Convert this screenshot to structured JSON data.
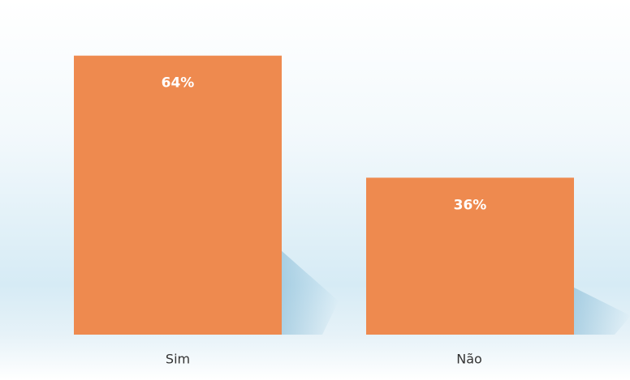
{
  "chart_data": {
    "type": "bar",
    "categories": [
      "Sim",
      "Não"
    ],
    "values": [
      64,
      36
    ],
    "value_labels": [
      "64%",
      "36%"
    ],
    "color": "#ee8a4f"
  }
}
